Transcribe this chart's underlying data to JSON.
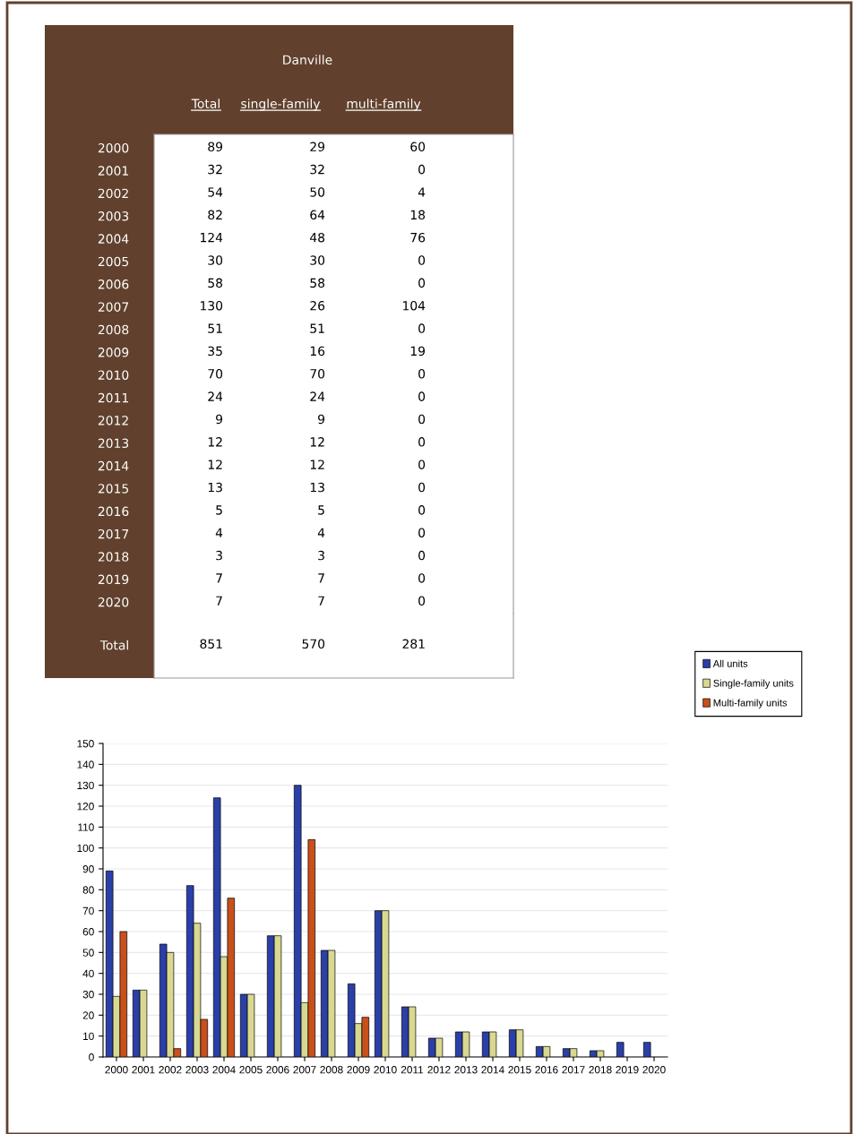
{
  "chart_data": [
    {
      "type": "heatmap",
      "title": "Danville",
      "categories": [
        "Total",
        "single-family",
        "multi-family"
      ],
      "y_categories": [
        "2000",
        "2001",
        "2002",
        "2003",
        "2004",
        "2005",
        "2006",
        "2007",
        "2008",
        "2009",
        "2010",
        "2011",
        "2012",
        "2013",
        "2014",
        "2015",
        "2016",
        "2017",
        "2018",
        "2019",
        "2020"
      ],
      "cells": [
        [
          89,
          29,
          60
        ],
        [
          32,
          32,
          0
        ],
        [
          54,
          50,
          4
        ],
        [
          82,
          64,
          18
        ],
        [
          124,
          48,
          76
        ],
        [
          30,
          30,
          0
        ],
        [
          58,
          58,
          0
        ],
        [
          130,
          26,
          104
        ],
        [
          51,
          51,
          0
        ],
        [
          35,
          16,
          19
        ],
        [
          70,
          70,
          0
        ],
        [
          24,
          24,
          0
        ],
        [
          9,
          9,
          0
        ],
        [
          12,
          12,
          0
        ],
        [
          12,
          12,
          0
        ],
        [
          13,
          13,
          0
        ],
        [
          5,
          5,
          0
        ],
        [
          4,
          4,
          0
        ],
        [
          3,
          3,
          0
        ],
        [
          7,
          7,
          0
        ],
        [
          7,
          7,
          0
        ]
      ],
      "data_labels": true
    },
    {
      "type": "heatmap",
      "categories": [
        null,
        null,
        null
      ],
      "y_categories": [
        "Total"
      ],
      "cells": [
        [
          851,
          570,
          281
        ]
      ],
      "data_labels": true
    },
    {
      "type": "bar",
      "categories": [
        "2000",
        "2001",
        "2002",
        "2003",
        "2004",
        "2005",
        "2006",
        "2007",
        "2008",
        "2009",
        "2010",
        "2011",
        "2012",
        "2013",
        "2014",
        "2015",
        "2016",
        "2017",
        "2018",
        "2019",
        "2020"
      ],
      "ylim": [
        0,
        150
      ],
      "yticks": [
        0,
        10,
        20,
        30,
        40,
        50,
        60,
        70,
        80,
        90,
        100,
        110,
        120,
        130,
        140,
        150
      ],
      "grid": "y",
      "legend": "right",
      "series": [
        {
          "name": "All units",
          "color": "#2a3fa8",
          "values": [
            89,
            32,
            54,
            82,
            124,
            30,
            58,
            130,
            51,
            35,
            70,
            24,
            9,
            12,
            12,
            13,
            5,
            4,
            3,
            7,
            7
          ]
        },
        {
          "name": "Single-family units",
          "color": "#d8d890",
          "values": [
            29,
            32,
            50,
            64,
            48,
            30,
            58,
            26,
            51,
            16,
            70,
            24,
            9,
            12,
            12,
            13,
            5,
            4,
            3,
            null,
            null
          ]
        },
        {
          "name": "Multi-family units",
          "color": "#c8501a",
          "values": [
            60,
            0,
            4,
            18,
            76,
            0,
            0,
            104,
            0,
            19,
            0,
            0,
            0,
            0,
            0,
            0,
            0,
            0,
            0,
            0,
            0
          ]
        }
      ]
    }
  ]
}
